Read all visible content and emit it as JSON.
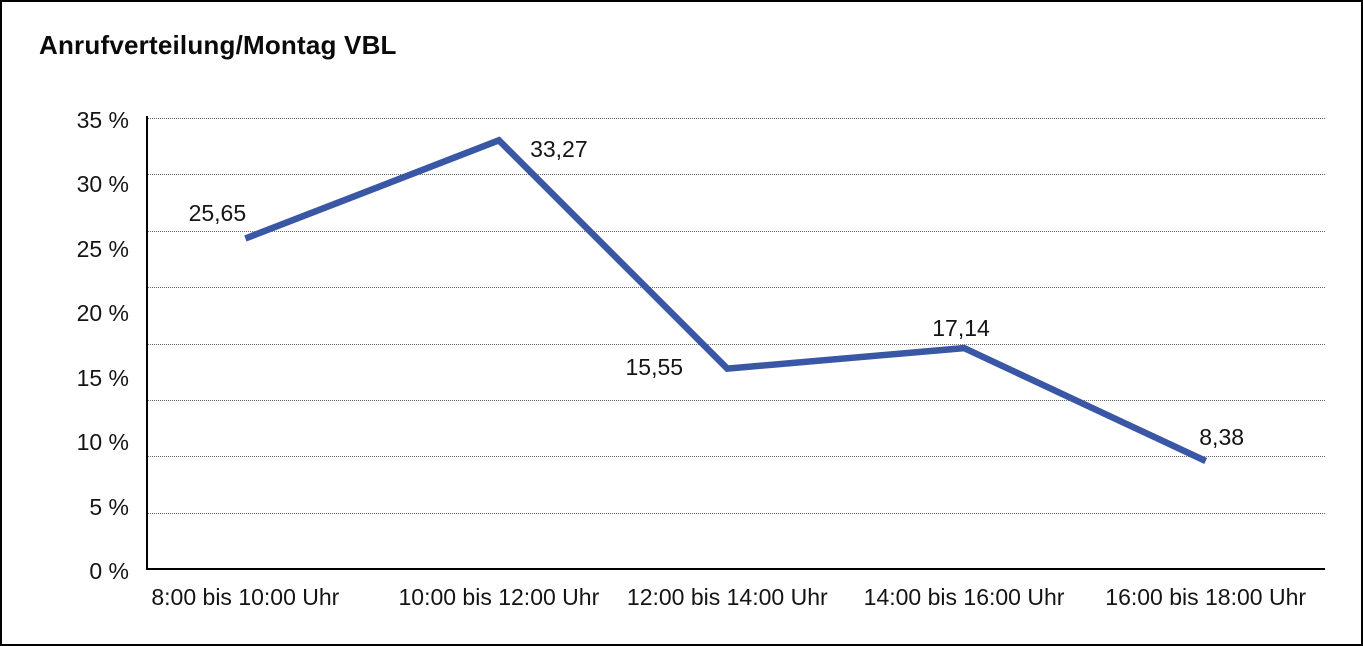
{
  "title": "Anrufverteilung/Montag VBL",
  "chart_data": {
    "type": "line",
    "title": "Anrufverteilung/Montag VBL",
    "categories": [
      "8:00 bis 10:00 Uhr",
      "10:00 bis 12:00 Uhr",
      "12:00 bis 14:00 Uhr",
      "14:00 bis 16:00 Uhr",
      "16:00 bis 18:00 Uhr"
    ],
    "series": [
      {
        "name": "Anrufverteilung Montag VBL",
        "values": [
          25.65,
          33.27,
          15.55,
          17.14,
          8.38
        ],
        "data_labels": [
          "25,65",
          "33,27",
          "15,55",
          "17,14",
          "8,38"
        ]
      }
    ],
    "xlabel": "",
    "ylabel": "",
    "y_tick_labels": [
      "35 %",
      "30 %",
      "25 %",
      "20 %",
      "15 %",
      "10 %",
      "5 %",
      "0 %"
    ],
    "y_tick_values": [
      35,
      30,
      25,
      20,
      15,
      10,
      5,
      0
    ],
    "ylim": [
      0,
      35
    ],
    "grid": "horizontal dotted, 9 evenly spaced lines",
    "legend_position": "none",
    "line_color": "#3A57A6",
    "decimal_separator": ","
  },
  "colors": {
    "line": "#3A57A6",
    "gridline": "#666666",
    "axis": "#000000",
    "text": "#141414",
    "background": "#FFFFFF",
    "border": "#000000"
  }
}
